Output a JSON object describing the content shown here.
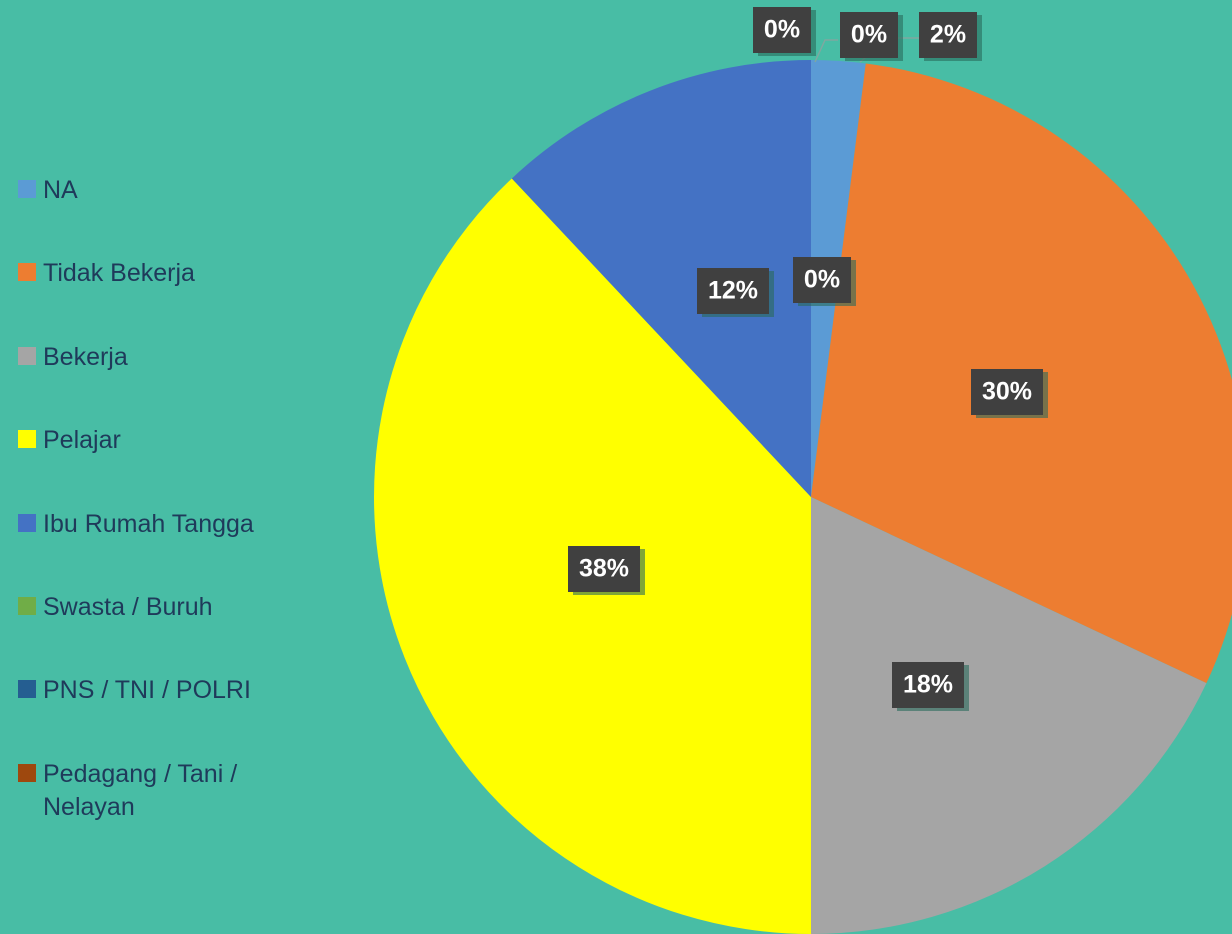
{
  "chart_data": {
    "type": "pie",
    "categories": [
      "NA",
      "Tidak Bekerja",
      "Bekerja",
      "Pelajar",
      "Ibu Rumah Tangga",
      "Swasta / Buruh",
      "PNS / TNI / POLRI",
      "Pedagang / Tani / Nelayan"
    ],
    "values": [
      2,
      30,
      18,
      38,
      12,
      0,
      0,
      0
    ],
    "value_labels": [
      "2%",
      "30%",
      "18%",
      "38%",
      "12%",
      "0%",
      "0%",
      "0%"
    ],
    "colors": [
      "#5b9bd5",
      "#ed7d31",
      "#a5a5a5",
      "#ffff00",
      "#4472c4",
      "#70ad47",
      "#255e91",
      "#9e480e"
    ],
    "legend": "left"
  }
}
